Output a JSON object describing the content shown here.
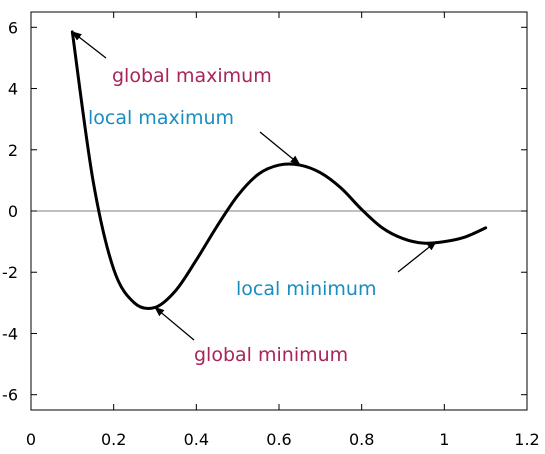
{
  "chart_data": {
    "type": "line",
    "title": "",
    "xlabel": "",
    "ylabel": "",
    "xlim": [
      0,
      1.2
    ],
    "ylim": [
      -6.5,
      6.5
    ],
    "grid": false,
    "xticks": [
      0,
      0.2,
      0.4,
      0.6,
      0.8,
      1,
      1.2
    ],
    "xtick_labels": [
      "0",
      "0.2",
      "0.4",
      "0.6",
      "0.8",
      "1",
      "1.2"
    ],
    "yticks": [
      -6,
      -4,
      -2,
      0,
      2,
      4,
      6
    ],
    "ytick_labels": [
      "-6",
      "-4",
      "-2",
      "0",
      "2",
      "4",
      "6"
    ],
    "zero_line": true,
    "series": [
      {
        "color": "#000000",
        "x": [
          0.1,
          0.15,
          0.2,
          0.25,
          0.3,
          0.35,
          0.4,
          0.45,
          0.5,
          0.55,
          0.6,
          0.65,
          0.7,
          0.75,
          0.8,
          0.85,
          0.9,
          0.95,
          1.0,
          1.05,
          1.1
        ],
        "y": [
          5.85,
          1.0,
          -1.9,
          -3.0,
          -3.15,
          -2.6,
          -1.6,
          -0.5,
          0.5,
          1.2,
          1.5,
          1.5,
          1.25,
          0.75,
          0.05,
          -0.55,
          -0.9,
          -1.05,
          -1.0,
          -0.85,
          -0.55
        ]
      }
    ],
    "annotations": [
      {
        "text": "global maximum",
        "color": "#a8255a",
        "point": [
          0.1,
          5.85
        ]
      },
      {
        "text": "local maximum",
        "color": "#1a8dc0",
        "point": [
          0.65,
          1.52
        ]
      },
      {
        "text": "local minimum",
        "color": "#1a8dc0",
        "point": [
          0.98,
          -1.0
        ]
      },
      {
        "text": "global minimum",
        "color": "#a8255a",
        "point": [
          0.3,
          -3.15
        ]
      }
    ]
  }
}
